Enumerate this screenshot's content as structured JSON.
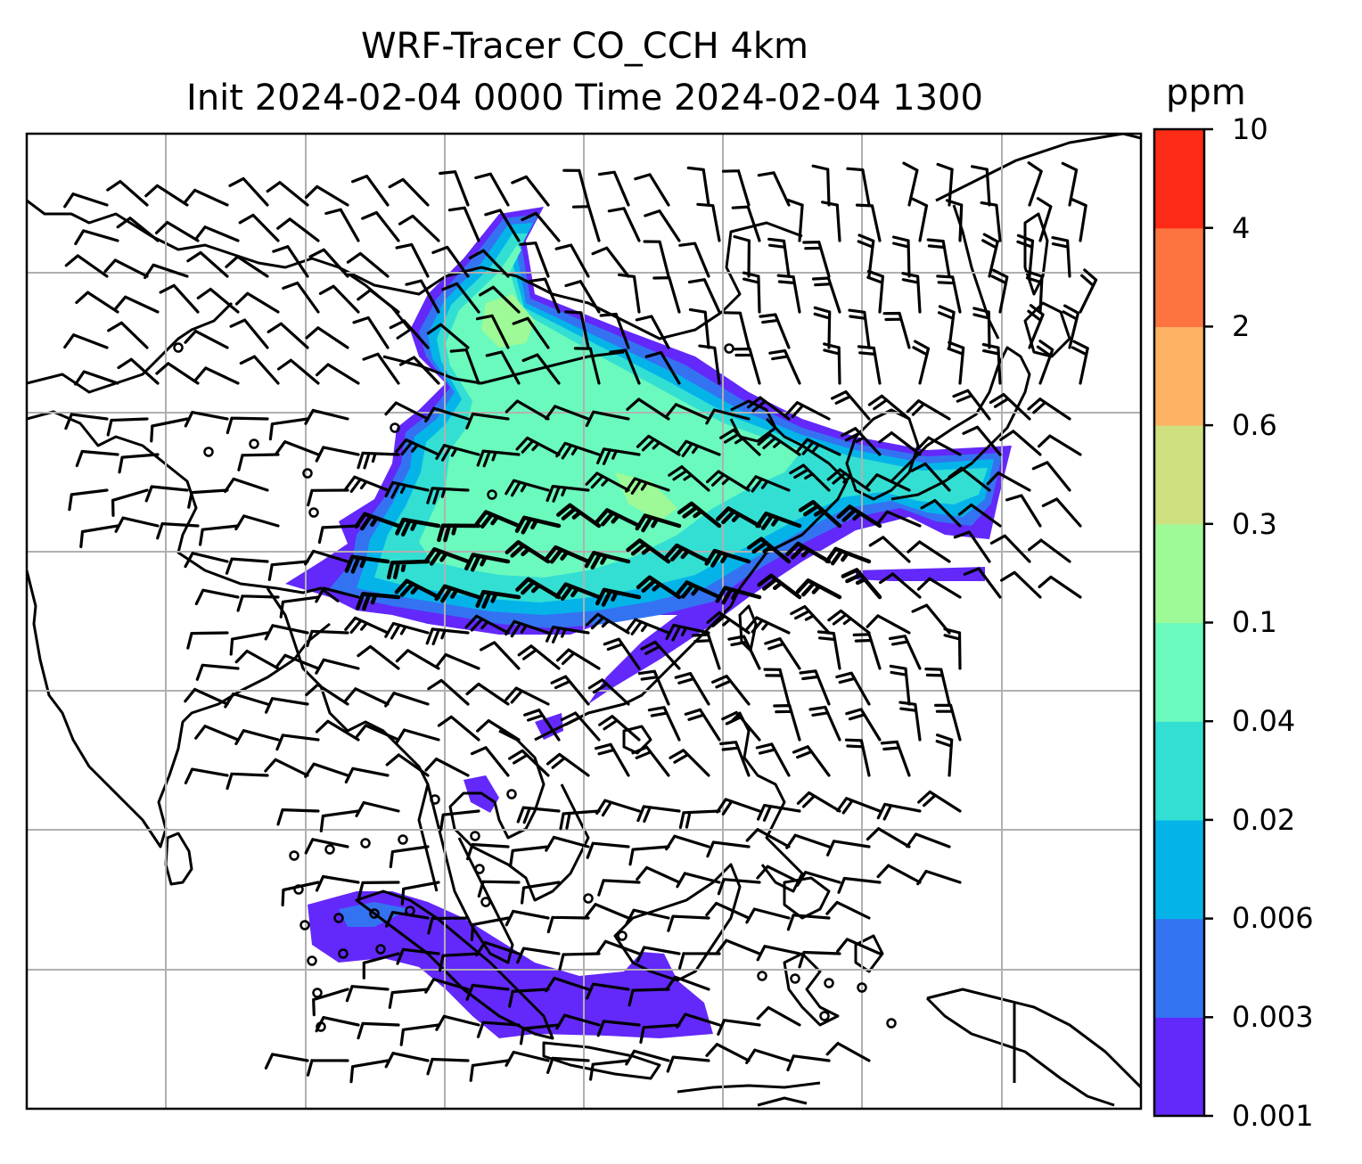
{
  "title": {
    "line1": "WRF-Tracer CO_CCH 4km",
    "line2": "Init 2024-02-04 0000 Time 2024-02-04 1300"
  },
  "colorbar": {
    "unit": "ppm",
    "levels": [
      "0.001",
      "0.003",
      "0.006",
      "0.02",
      "0.04",
      "0.1",
      "0.3",
      "0.6",
      "2",
      "4",
      "10"
    ],
    "colors": [
      "#6328fa",
      "#3373f2",
      "#04b4e9",
      "#33dfd3",
      "#6afabd",
      "#9dfa96",
      "#cde181",
      "#fdb264",
      "#fe7440",
      "#fe2b16"
    ]
  },
  "map": {
    "variable": "CO_CCH tracer concentration",
    "overlay": "wind barbs",
    "gridlines": true,
    "region": "South, Southeast and East Asia",
    "colors": {
      "coastline": "#000000",
      "gridline": "#b0b0b0"
    }
  }
}
